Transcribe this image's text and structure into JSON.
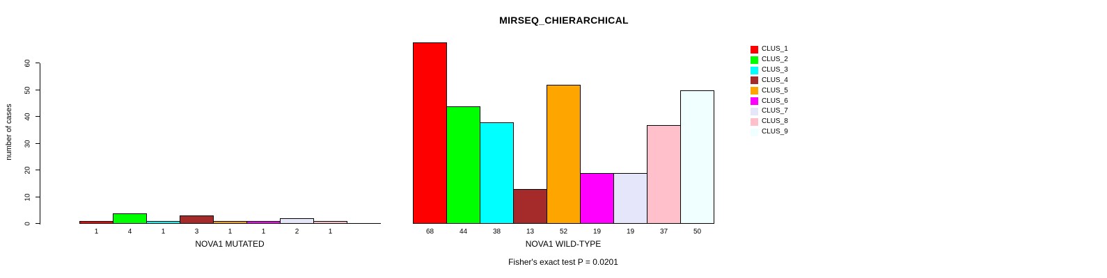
{
  "chart_data": {
    "type": "bar",
    "title": "MIRSEQ_CHIERARCHICAL",
    "ylabel": "number of cases",
    "ylim": [
      0,
      60
    ],
    "yticks": [
      0,
      10,
      20,
      30,
      40,
      50,
      60
    ],
    "grid": false,
    "legend_position": "right",
    "clusters": [
      "CLUS_1",
      "CLUS_2",
      "CLUS_3",
      "CLUS_4",
      "CLUS_5",
      "CLUS_6",
      "CLUS_7",
      "CLUS_8",
      "CLUS_9"
    ],
    "colors": [
      "#FF0000",
      "#00FF00",
      "#00FFFF",
      "#A52A2A",
      "#FFA500",
      "#FF00FF",
      "#E6E6FA",
      "#FFC0CB",
      "#F0FFFF"
    ],
    "groups": [
      {
        "id": "mutated",
        "label": "NOVA1 MUTATED",
        "values": [
          1,
          4,
          1,
          3,
          1,
          1,
          2,
          1,
          0
        ]
      },
      {
        "id": "wildtype",
        "label": "NOVA1 WILD-TYPE",
        "values": [
          68,
          44,
          38,
          13,
          52,
          19,
          19,
          37,
          50
        ]
      }
    ],
    "footnote": "Fisher's exact test P = 0.0201"
  }
}
